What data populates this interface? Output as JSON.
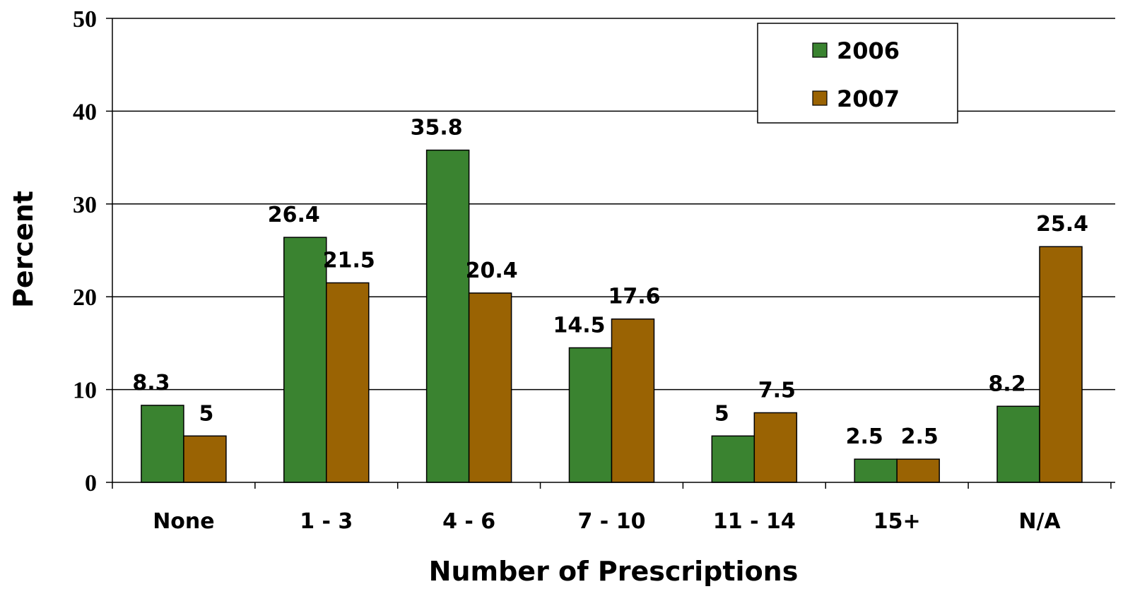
{
  "chart_data": {
    "type": "bar",
    "categories": [
      "None",
      "1 - 3",
      "4 - 6",
      "7 - 10",
      "11 - 14",
      "15+",
      "N/A"
    ],
    "series": [
      {
        "name": "2006",
        "color": "#3a8330",
        "values": [
          8.3,
          26.4,
          35.8,
          14.5,
          5,
          2.5,
          8.2
        ]
      },
      {
        "name": "2007",
        "color": "#9a6303",
        "values": [
          5,
          21.5,
          20.4,
          17.6,
          7.5,
          2.5,
          25.4
        ]
      }
    ],
    "data_labels": [
      [
        "8.3",
        "26.4",
        "35.8",
        "14.5",
        "5",
        "2.5",
        "8.2"
      ],
      [
        "5",
        "21.5",
        "20.4",
        "17.6",
        "7.5",
        "2.5",
        "25.4"
      ]
    ],
    "xlabel": "Number of Prescriptions",
    "ylabel": "Percent",
    "ylim": [
      0,
      50
    ],
    "yticks": [
      0,
      10,
      20,
      30,
      40,
      50
    ],
    "grid": true,
    "legend_position": "top-right"
  }
}
